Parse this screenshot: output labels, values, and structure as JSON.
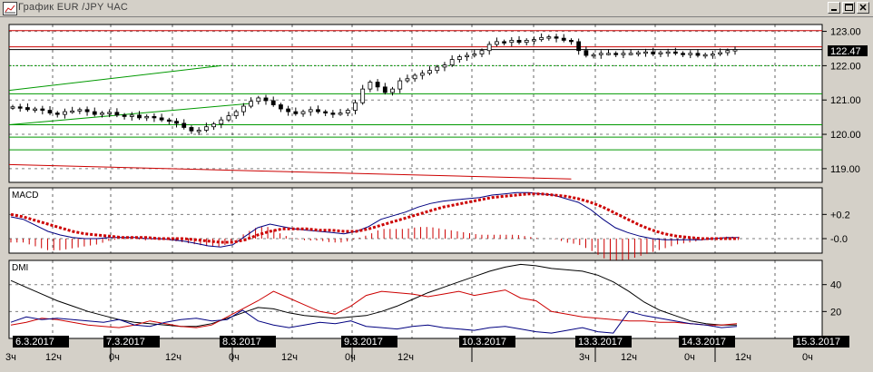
{
  "window": {
    "title": "График EUR /JPY ЧАС",
    "buttons": [
      "minimize",
      "maximize",
      "close"
    ]
  },
  "chart_data": [
    {
      "type": "candlestick",
      "panel": "price",
      "ylim": [
        118.6,
        123.2
      ],
      "y_ticks": [
        "123.00",
        "122.00",
        "121.00",
        "120.00",
        "119.00"
      ],
      "current_price": "122.47",
      "close_series": [
        120.8,
        120.78,
        120.72,
        120.74,
        120.7,
        120.62,
        120.58,
        120.66,
        120.68,
        120.72,
        120.66,
        120.58,
        120.62,
        120.64,
        120.56,
        120.52,
        120.56,
        120.48,
        120.52,
        120.48,
        120.42,
        120.38,
        120.32,
        120.2,
        120.1,
        120.12,
        120.22,
        120.3,
        120.42,
        120.54,
        120.66,
        120.82,
        120.96,
        121.06,
        120.98,
        120.86,
        120.74,
        120.66,
        120.6,
        120.66,
        120.72,
        120.66,
        120.62,
        120.6,
        120.62,
        120.7,
        120.92,
        121.32,
        121.52,
        121.38,
        121.22,
        121.32,
        121.56,
        121.62,
        121.72,
        121.78,
        121.86,
        121.96,
        122.02,
        122.18,
        122.26,
        122.3,
        122.34,
        122.44,
        122.62,
        122.7,
        122.68,
        122.74,
        122.68,
        122.74,
        122.76,
        122.82,
        122.84,
        122.8,
        122.74,
        122.7,
        122.44,
        122.3,
        122.32,
        122.36,
        122.36,
        122.34,
        122.36,
        122.36,
        122.38,
        122.4,
        122.34,
        122.38,
        122.4,
        122.36,
        122.34,
        122.36,
        122.3,
        122.32,
        122.34,
        122.38,
        122.44,
        122.47
      ],
      "horizontal_lines": [
        {
          "value": 123.02,
          "color": "#cc0000"
        },
        {
          "value": 122.55,
          "color": "#cc0000"
        },
        {
          "value": 122.47,
          "color": "#000000"
        },
        {
          "value": 122.0,
          "color": "#009900",
          "dashed": true
        },
        {
          "value": 121.18,
          "color": "#009900"
        },
        {
          "value": 120.28,
          "color": "#009900"
        },
        {
          "value": 119.92,
          "color": "#009900"
        },
        {
          "value": 119.55,
          "color": "#009900"
        }
      ],
      "trend_lines": [
        {
          "from": [
            0,
            121.28
          ],
          "to": [
            28,
            122.0
          ],
          "color": "#009900"
        },
        {
          "from": [
            0,
            120.28
          ],
          "to": [
            32,
            120.9
          ],
          "color": "#009900"
        },
        {
          "from": [
            0,
            119.12
          ],
          "to": [
            75,
            118.7
          ],
          "color": "#cc0000"
        }
      ]
    },
    {
      "type": "line",
      "panel": "macd",
      "title": "MACD",
      "ylim": [
        -0.12,
        0.42
      ],
      "y_ticks": [
        "+0.2",
        "-0.0"
      ],
      "series": [
        {
          "color": "#000080",
          "values": [
            0.18,
            0.16,
            0.11,
            0.06,
            0.03,
            0.01,
            0.0,
            0.0,
            0.01,
            0.01,
            0.01,
            0.0,
            0.0,
            -0.01,
            -0.02,
            -0.04,
            -0.06,
            -0.07,
            -0.05,
            0.02,
            0.09,
            0.12,
            0.1,
            0.08,
            0.07,
            0.06,
            0.05,
            0.04,
            0.06,
            0.1,
            0.16,
            0.19,
            0.22,
            0.26,
            0.29,
            0.31,
            0.32,
            0.33,
            0.34,
            0.36,
            0.37,
            0.38,
            0.38,
            0.37,
            0.36,
            0.33,
            0.3,
            0.24,
            0.16,
            0.09,
            0.05,
            0.02,
            0.0,
            -0.01,
            -0.01,
            -0.01,
            -0.01,
            0.0,
            0.01,
            0.01
          ]
        },
        {
          "color": "#cc0000",
          "dashed": true,
          "values": [
            0.2,
            0.18,
            0.15,
            0.12,
            0.09,
            0.06,
            0.04,
            0.03,
            0.02,
            0.01,
            0.01,
            0.01,
            0.0,
            0.0,
            0.0,
            -0.01,
            -0.02,
            -0.03,
            -0.03,
            -0.01,
            0.03,
            0.06,
            0.08,
            0.08,
            0.08,
            0.07,
            0.07,
            0.06,
            0.06,
            0.08,
            0.11,
            0.14,
            0.17,
            0.2,
            0.23,
            0.26,
            0.28,
            0.3,
            0.32,
            0.34,
            0.35,
            0.36,
            0.37,
            0.37,
            0.36,
            0.35,
            0.33,
            0.3,
            0.26,
            0.21,
            0.16,
            0.11,
            0.07,
            0.04,
            0.02,
            0.01,
            0.0,
            0.0,
            0.0,
            0.0
          ]
        }
      ]
    },
    {
      "type": "line",
      "panel": "dmi",
      "title": "DMI",
      "ylim": [
        0,
        58
      ],
      "y_ticks": [
        "40",
        "20"
      ],
      "series": [
        {
          "color": "#000000",
          "values": [
            43,
            38,
            33,
            28,
            24,
            20,
            17,
            14,
            12,
            11,
            10,
            9,
            9,
            11,
            15,
            19,
            23,
            22,
            19,
            17,
            16,
            15,
            16,
            17,
            20,
            24,
            29,
            34,
            38,
            42,
            46,
            50,
            53,
            55,
            54,
            52,
            51,
            50,
            47,
            42,
            35,
            27,
            21,
            17,
            13,
            11,
            10,
            10
          ]
        },
        {
          "color": "#cc0000",
          "values": [
            10,
            12,
            15,
            14,
            12,
            10,
            9,
            8,
            10,
            13,
            11,
            9,
            8,
            10,
            16,
            22,
            28,
            35,
            30,
            25,
            20,
            18,
            24,
            32,
            35,
            34,
            33,
            31,
            33,
            35,
            32,
            34,
            36,
            30,
            28,
            20,
            18,
            16,
            15,
            14,
            13,
            13,
            12,
            12,
            11,
            10,
            10,
            11
          ]
        },
        {
          "color": "#000080",
          "values": [
            12,
            16,
            14,
            15,
            14,
            13,
            12,
            14,
            10,
            9,
            12,
            14,
            15,
            13,
            14,
            21,
            13,
            10,
            8,
            10,
            12,
            11,
            13,
            9,
            8,
            7,
            9,
            10,
            8,
            7,
            6,
            8,
            9,
            7,
            5,
            4,
            6,
            8,
            5,
            4,
            20,
            17,
            15,
            13,
            11,
            10,
            8,
            9
          ]
        }
      ]
    }
  ],
  "x_axis": {
    "date_labels": [
      "6.3.2017",
      "7.3.2017",
      "8.3.2017",
      "9.3.2017",
      "10.3.2017",
      "13.3.2017",
      "14.3.2017",
      "15.3.2017"
    ],
    "time_labels": [
      "3ч",
      "12ч",
      "0ч",
      "12ч",
      "0ч",
      "12ч",
      "0ч",
      "12ч",
      "3ч",
      "12ч",
      "0ч",
      "12ч",
      "0ч"
    ]
  }
}
